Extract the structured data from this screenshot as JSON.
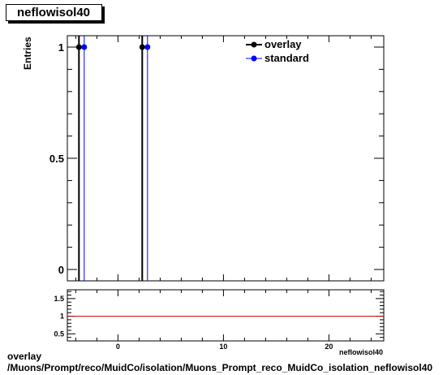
{
  "title": "neflowisol40",
  "caption": {
    "line1": "overlay",
    "line2": "/Muons/Prompt/reco/MuidCo/isolation/Muons_Prompt_reco_MuidCo_isolation_neflowisol40"
  },
  "chart_data": [
    {
      "type": "bar",
      "title": "neflowisol40",
      "ylabel": "Entries",
      "xlabel": "",
      "xlim": [
        -4.8,
        25.2
      ],
      "ylim": [
        0,
        1.05
      ],
      "yticks": [
        0,
        0.5,
        1
      ],
      "ytick_labels": [
        "0",
        "0.5",
        "1"
      ],
      "legend_position": "top-right",
      "series": [
        {
          "name": "overlay",
          "color": "#000000",
          "x": [
            -3.7,
            2.3
          ],
          "y": [
            1,
            1
          ]
        },
        {
          "name": "standard",
          "color": "#0000ff",
          "x": [
            -3.2,
            2.8
          ],
          "y": [
            1,
            1
          ]
        }
      ]
    },
    {
      "type": "line",
      "title": "",
      "ylabel": "",
      "xlabel": "neflowisol40",
      "xlim": [
        -4.8,
        25.2
      ],
      "ylim": [
        0.3,
        1.75
      ],
      "yticks": [
        0.5,
        1,
        1.5
      ],
      "ytick_labels": [
        "0.5",
        "1",
        "1.5"
      ],
      "xticks": [
        0,
        10,
        20
      ],
      "xtick_labels": [
        "0",
        "10",
        "20"
      ],
      "reference_line": {
        "y": 1,
        "color": "#cc0000"
      }
    }
  ]
}
